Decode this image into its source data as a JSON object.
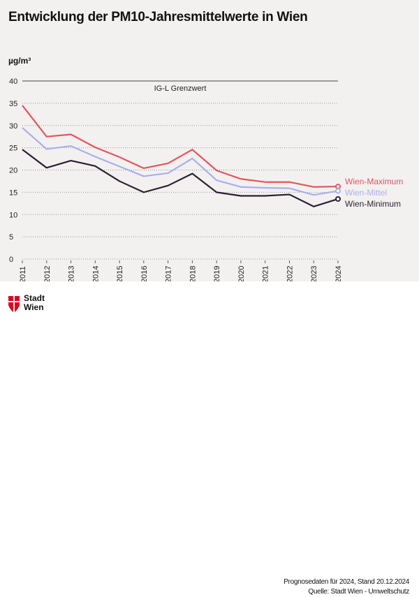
{
  "chart_data": {
    "type": "line",
    "title": "Entwicklung der PM10-Jahresmittelwerte in Wien",
    "ylabel": "µg/m³",
    "xlabel": "",
    "ylim": [
      0,
      40
    ],
    "yticks": [
      "0",
      "5",
      "10",
      "15",
      "20",
      "25",
      "30",
      "35",
      "40"
    ],
    "x": [
      "2011",
      "2012",
      "2013",
      "2014",
      "2015",
      "2016",
      "2017",
      "2018",
      "2019",
      "2020",
      "2021",
      "2022",
      "2023",
      "2024"
    ],
    "grid": true,
    "reference_line": {
      "value": 40,
      "label": "IG-L Grenzwert"
    },
    "legend_placement": "right",
    "series": [
      {
        "name": "Wien-Maximum",
        "color": "#e8535d",
        "values": [
          34.5,
          27.5,
          28.0,
          25.1,
          22.9,
          20.4,
          21.5,
          24.6,
          19.9,
          18.0,
          17.3,
          17.3,
          16.2,
          16.3
        ]
      },
      {
        "name": "Wien-Mittel",
        "color": "#a9aef0",
        "values": [
          29.5,
          24.7,
          25.4,
          23.0,
          20.8,
          18.6,
          19.3,
          22.6,
          17.7,
          16.2,
          16.0,
          15.9,
          14.4,
          15.3
        ]
      },
      {
        "name": "Wien-Minimum",
        "color": "#2e1f33",
        "values": [
          24.6,
          20.5,
          22.1,
          20.9,
          17.5,
          15.0,
          16.5,
          19.2,
          15.0,
          14.2,
          14.2,
          14.5,
          11.8,
          13.5
        ]
      }
    ]
  },
  "footer": {
    "logo_line1": "Stadt",
    "logo_line2": "Wien",
    "note": "Prognosedaten für 2024, Stand 20.12.2024",
    "source": "Quelle: Stadt Wien - Umweltschutz"
  }
}
